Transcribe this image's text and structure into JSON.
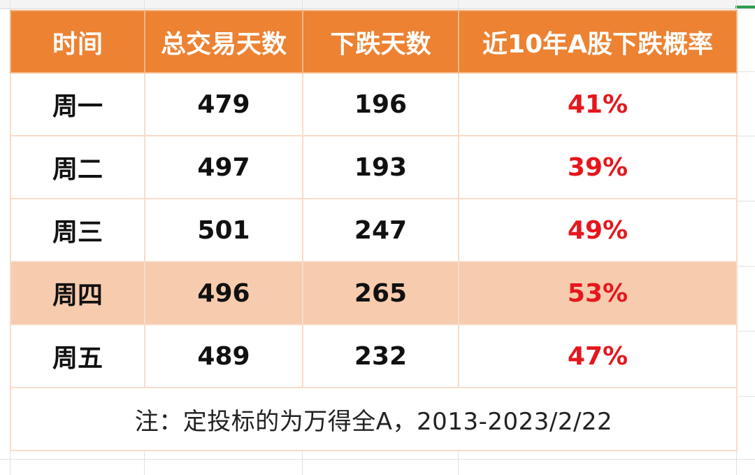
{
  "table": {
    "headers": [
      "时间",
      "总交易天数",
      "下跌天数",
      "近10年A股下跌概率"
    ],
    "rows": [
      {
        "day": "周一",
        "total": "479",
        "down": "196",
        "prob": "41%"
      },
      {
        "day": "周二",
        "total": "497",
        "down": "193",
        "prob": "39%"
      },
      {
        "day": "周三",
        "total": "501",
        "down": "247",
        "prob": "49%"
      },
      {
        "day": "周四",
        "total": "496",
        "down": "265",
        "prob": "53%"
      },
      {
        "day": "周五",
        "total": "489",
        "down": "232",
        "prob": "47%"
      }
    ],
    "note": "注：定投标的为万得全A，2013-2023/2/22"
  },
  "colors": {
    "header_bg": "#ec8232",
    "header_text": "#ffffff",
    "highlight_row_bg": "#f7cbae",
    "probability_text": "#e5171d",
    "cell_border": "#f7dccb"
  }
}
